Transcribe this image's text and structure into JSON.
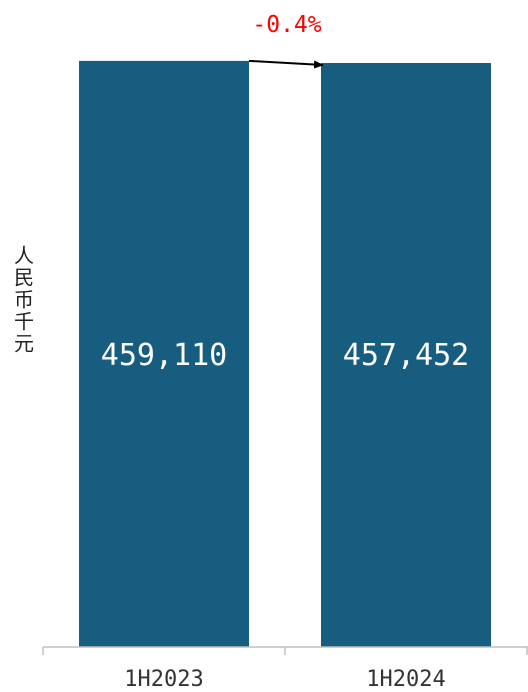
{
  "chart_data": {
    "type": "bar",
    "categories": [
      "1H2023",
      "1H2024"
    ],
    "values": [
      459110,
      457452
    ],
    "value_labels": [
      "459,110",
      "457,452"
    ],
    "ylabel": "人民币千元",
    "ylim": [
      0,
      470000
    ],
    "bar_color": "#175d80",
    "annotation": {
      "text": "-0.4%",
      "color": "#ff0000"
    },
    "grid": false
  }
}
